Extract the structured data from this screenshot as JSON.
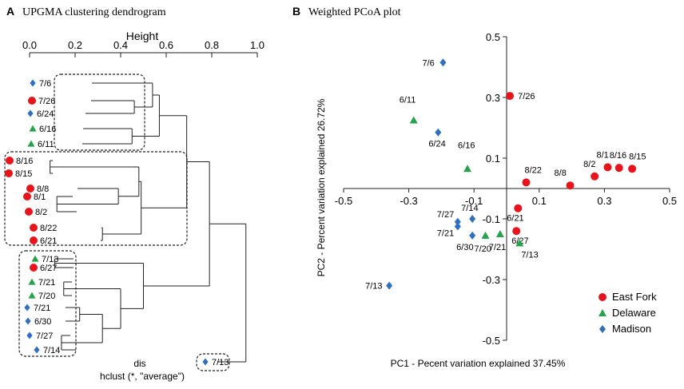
{
  "panel_a": {
    "letter": "A",
    "title": "UPGMA clustering dendrogram",
    "axis_title": "Height",
    "ticks": [
      "0.0",
      "0.2",
      "0.4",
      "0.6",
      "0.8",
      "1.0"
    ],
    "footer_line1": "dis",
    "footer_line2": "hclust (*, \"average\")"
  },
  "panel_b": {
    "letter": "B",
    "title": "Weighted PCoA plot",
    "legend": [
      {
        "key": "eastfork",
        "label": "East Fork"
      },
      {
        "key": "delaware",
        "label": "Delaware"
      },
      {
        "key": "madison",
        "label": "Madison"
      }
    ]
  },
  "colors": {
    "eastfork": "#e8141c",
    "delaware": "#26a34a",
    "madison": "#2e6fc0",
    "line": "#222222"
  },
  "chart_data": [
    {
      "type": "dendrogram",
      "title": "UPGMA clustering dendrogram",
      "xlabel": "Height",
      "xlim": [
        0,
        1
      ],
      "method": "hclust (*, \"average\")",
      "leaves": [
        {
          "label": "7/6",
          "group": "madison"
        },
        {
          "label": "7/26",
          "group": "eastfork"
        },
        {
          "label": "6/24",
          "group": "madison"
        },
        {
          "label": "6/16",
          "group": "delaware"
        },
        {
          "label": "6/11",
          "group": "delaware"
        },
        {
          "label": "8/16",
          "group": "eastfork"
        },
        {
          "label": "8/15",
          "group": "eastfork"
        },
        {
          "label": "8/8",
          "group": "eastfork"
        },
        {
          "label": "8/1",
          "group": "eastfork"
        },
        {
          "label": "8/2",
          "group": "eastfork"
        },
        {
          "label": "8/22",
          "group": "eastfork"
        },
        {
          "label": "6/21",
          "group": "eastfork"
        },
        {
          "label": "7/13",
          "group": "delaware"
        },
        {
          "label": "6/27",
          "group": "eastfork"
        },
        {
          "label": "7/21",
          "group": "delaware"
        },
        {
          "label": "7/20",
          "group": "delaware"
        },
        {
          "label": "7/21",
          "group": "madison"
        },
        {
          "label": "6/30",
          "group": "madison"
        },
        {
          "label": "7/27",
          "group": "madison"
        },
        {
          "label": "7/14",
          "group": "madison"
        },
        {
          "label": "7/13",
          "group": "madison"
        }
      ],
      "merges": [
        {
          "a": "L1",
          "b": "L2",
          "height": 0.46
        },
        {
          "a": "L0",
          "b": "N0",
          "height": 0.54
        },
        {
          "a": "L3",
          "b": "L4",
          "height": 0.45
        },
        {
          "a": "N1",
          "b": "N2",
          "height": 0.57
        },
        {
          "a": "L5",
          "b": "L6",
          "height": 0.09
        },
        {
          "a": "L8",
          "b": "L9",
          "height": 0.12
        },
        {
          "a": "L7",
          "b": "N5",
          "height": 0.39
        },
        {
          "a": "N4",
          "b": "N6",
          "height": 0.48
        },
        {
          "a": "L10",
          "b": "L11",
          "height": 0.32
        },
        {
          "a": "N7",
          "b": "N8",
          "height": 0.49
        },
        {
          "a": "N3",
          "b": "N9",
          "height": 0.69
        },
        {
          "a": "L12",
          "b": "L13",
          "height": 0.11
        },
        {
          "a": "L14",
          "b": "L15",
          "height": 0.15
        },
        {
          "a": "L16",
          "b": "L17",
          "height": 0.22
        },
        {
          "a": "L18",
          "b": "L19",
          "height": 0.14
        },
        {
          "a": "N13",
          "b": "N14",
          "height": 0.32
        },
        {
          "a": "N12",
          "b": "N15",
          "height": 0.4
        },
        {
          "a": "N11",
          "b": "N16",
          "height": 0.5
        },
        {
          "a": "N10",
          "b": "N17",
          "height": 0.79
        },
        {
          "a": "N18",
          "b": "L20",
          "height": 0.95
        }
      ]
    },
    {
      "type": "scatter",
      "title": "Weighted PCoA plot",
      "xlabel": "PC1 - Pecent variation explained 37.45%",
      "ylabel": "PC2 - Percent variation explained 26.72%",
      "xlim": [
        -0.5,
        0.5
      ],
      "ylim": [
        -0.5,
        0.5
      ],
      "xticks": [
        "-0.5",
        "-0.3",
        "-0.1",
        "0.1",
        "0.3",
        "0.5"
      ],
      "yticks": [
        "0.5",
        "0.3",
        "0.1",
        "-0.1",
        "-0.3",
        "-0.5"
      ],
      "series": [
        {
          "name": "East Fork",
          "key": "eastfork",
          "points": [
            {
              "x": 0.01,
              "y": 0.305,
              "label": "7/26"
            },
            {
              "x": 0.06,
              "y": 0.02,
              "label": "8/22"
            },
            {
              "x": 0.035,
              "y": -0.065,
              "label": "6/21"
            },
            {
              "x": 0.03,
              "y": -0.14,
              "label": "6/27"
            },
            {
              "x": 0.195,
              "y": 0.01,
              "label": "8/8"
            },
            {
              "x": 0.27,
              "y": 0.04,
              "label": "8/2"
            },
            {
              "x": 0.31,
              "y": 0.07,
              "label": "8/1"
            },
            {
              "x": 0.345,
              "y": 0.068,
              "label": "8/16"
            },
            {
              "x": 0.385,
              "y": 0.065,
              "label": "8/15"
            }
          ]
        },
        {
          "name": "Delaware",
          "key": "delaware",
          "points": [
            {
              "x": -0.285,
              "y": 0.225,
              "label": "6/11"
            },
            {
              "x": -0.12,
              "y": 0.065,
              "label": "6/16"
            },
            {
              "x": -0.065,
              "y": -0.155,
              "label": "7/20"
            },
            {
              "x": -0.02,
              "y": -0.15,
              "label": "7/21"
            },
            {
              "x": 0.04,
              "y": -0.18,
              "label": "7/13"
            }
          ]
        },
        {
          "name": "Madison",
          "key": "madison",
          "points": [
            {
              "x": -0.195,
              "y": 0.415,
              "label": "7/6"
            },
            {
              "x": -0.21,
              "y": 0.185,
              "label": "6/24"
            },
            {
              "x": -0.105,
              "y": -0.1,
              "label": "7/14"
            },
            {
              "x": -0.15,
              "y": -0.11,
              "label": "7/27"
            },
            {
              "x": -0.15,
              "y": -0.125,
              "label": "7/21"
            },
            {
              "x": -0.105,
              "y": -0.155,
              "label": "6/30"
            },
            {
              "x": -0.36,
              "y": -0.32,
              "label": "7/13"
            }
          ]
        }
      ]
    }
  ]
}
